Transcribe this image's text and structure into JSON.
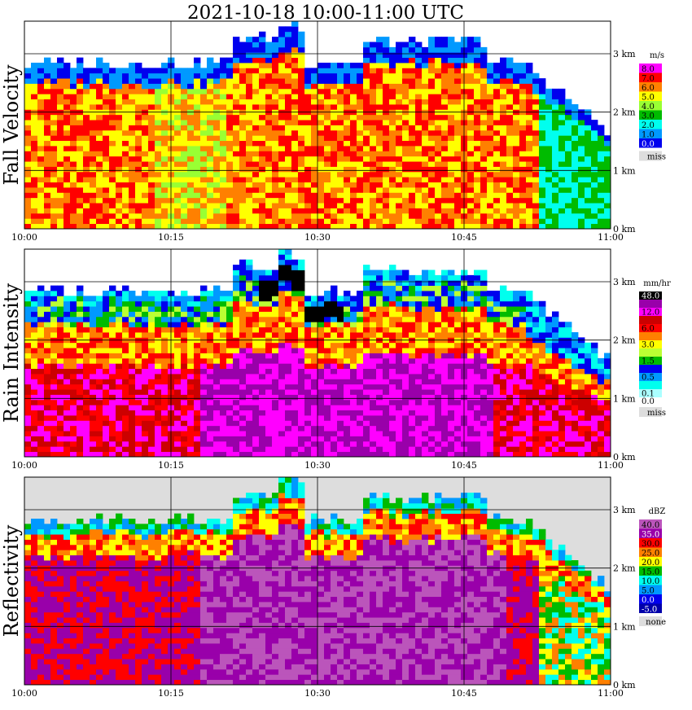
{
  "title": "2021-10-18   10:00-11:00 UTC",
  "chart_data": [
    {
      "type": "heatmap",
      "panel_label": "Fall Velocity",
      "legend_unit": "m/s",
      "legend": [
        {
          "label": "8.0",
          "color": "#ff00ff"
        },
        {
          "label": "7.0",
          "color": "#ff0000"
        },
        {
          "label": "6.0",
          "color": "#ff8000"
        },
        {
          "label": "5.0",
          "color": "#ffff00"
        },
        {
          "label": "4.0",
          "color": "#99ff33"
        },
        {
          "label": "3.0",
          "color": "#00bb00"
        },
        {
          "label": "2.0",
          "color": "#00ffee"
        },
        {
          "label": "1.0",
          "color": "#0099ff"
        },
        {
          "label": "0.0",
          "color": "#0000ee"
        }
      ],
      "missing_label": "miss",
      "x_ticks": [
        "10:00",
        "10:15",
        "10:30",
        "10:45",
        "11:00"
      ],
      "y_ticks": [
        "0 km",
        "1 km",
        "2 km",
        "3 km"
      ]
    },
    {
      "type": "heatmap",
      "panel_label": "Rain Intensity",
      "legend_unit": "mm/hr",
      "legend": [
        {
          "label": "48.0",
          "color": "#000000"
        },
        {
          "label": "",
          "color": "#9900aa"
        },
        {
          "label": "12.0",
          "color": "#ff00ff"
        },
        {
          "label": "",
          "color": "#cc0000"
        },
        {
          "label": "6.0",
          "color": "#ff0000"
        },
        {
          "label": "",
          "color": "#ff8000"
        },
        {
          "label": "3.0",
          "color": "#ffff00"
        },
        {
          "label": "",
          "color": "#bbff33"
        },
        {
          "label": "1.5",
          "color": "#00bb00"
        },
        {
          "label": "",
          "color": "#0000ee"
        },
        {
          "label": "0.5",
          "color": "#0099ff"
        },
        {
          "label": "",
          "color": "#00ffee"
        },
        {
          "label": "0.1",
          "color": "#aaffff"
        }
      ],
      "zero_label": "0.0",
      "missing_label": "miss",
      "x_ticks": [
        "10:00",
        "10:15",
        "10:30",
        "10:45",
        "11:00"
      ],
      "y_ticks": [
        "0 km",
        "1 km",
        "2 km",
        "3 km"
      ]
    },
    {
      "type": "heatmap",
      "panel_label": "Reflectivity",
      "legend_unit": "dBZ",
      "legend": [
        {
          "label": "40.0",
          "color": "#bb55bb"
        },
        {
          "label": "35.0",
          "color": "#9900aa"
        },
        {
          "label": "30.0",
          "color": "#ff0000"
        },
        {
          "label": "25.0",
          "color": "#ff8000"
        },
        {
          "label": "20.0",
          "color": "#ffff00"
        },
        {
          "label": "15.0",
          "color": "#00bb00"
        },
        {
          "label": "10.0",
          "color": "#00ffee"
        },
        {
          "label": "5.0",
          "color": "#0099ff"
        },
        {
          "label": "0.0",
          "color": "#0000ee"
        },
        {
          "label": "-5.0",
          "color": "#0000aa"
        }
      ],
      "missing_label": "none",
      "x_ticks": [
        "10:00",
        "10:15",
        "10:30",
        "10:45",
        "11:00"
      ],
      "y_ticks": [
        "0 km",
        "1 km",
        "2 km",
        "3 km"
      ]
    }
  ]
}
